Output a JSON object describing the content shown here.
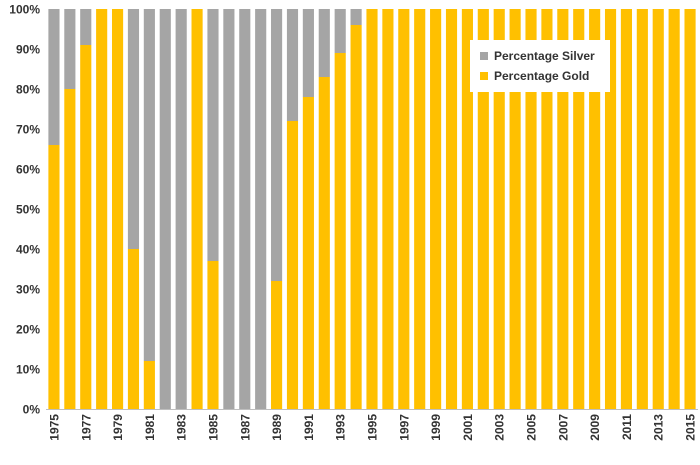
{
  "chart_data": {
    "type": "bar",
    "stacked": true,
    "categories": [
      "1975",
      "1976",
      "1977",
      "1978",
      "1979",
      "1980",
      "1981",
      "1982",
      "1983",
      "1984",
      "1985",
      "1986",
      "1987",
      "1988",
      "1989",
      "1990",
      "1991",
      "1992",
      "1993",
      "1994",
      "1995",
      "1996",
      "1997",
      "1998",
      "1999",
      "2000",
      "2001",
      "2002",
      "2003",
      "2004",
      "2005",
      "2006",
      "2007",
      "2008",
      "2009",
      "2010",
      "2011",
      "2012",
      "2013",
      "2014",
      "2015"
    ],
    "tick_labels": [
      "1975",
      "1977",
      "1979",
      "1981",
      "1983",
      "1985",
      "1987",
      "1989",
      "1991",
      "1993",
      "1995",
      "1997",
      "1999",
      "2001",
      "2003",
      "2005",
      "2007",
      "2009",
      "2011",
      "2013",
      "2015"
    ],
    "series": [
      {
        "name": "Percentage Gold",
        "color": "#FFC000",
        "values": [
          66,
          80,
          91,
          100,
          100,
          40,
          12,
          0,
          0,
          100,
          37,
          0,
          0,
          0,
          32,
          72,
          78,
          83,
          89,
          96,
          100,
          100,
          100,
          100,
          100,
          100,
          100,
          100,
          100,
          100,
          100,
          100,
          100,
          100,
          100,
          100,
          100,
          100,
          100,
          100,
          100
        ]
      },
      {
        "name": "Percentage Silver",
        "color": "#A5A5A5",
        "values": [
          34,
          20,
          9,
          0,
          0,
          60,
          88,
          100,
          100,
          0,
          63,
          100,
          100,
          100,
          68,
          28,
          22,
          17,
          11,
          4,
          0,
          0,
          0,
          0,
          0,
          0,
          0,
          0,
          0,
          0,
          0,
          0,
          0,
          0,
          0,
          0,
          0,
          0,
          0,
          0,
          0
        ]
      }
    ],
    "y_ticks": [
      "0%",
      "10%",
      "20%",
      "30%",
      "40%",
      "50%",
      "60%",
      "70%",
      "80%",
      "90%",
      "100%"
    ],
    "ylim": [
      0,
      100
    ],
    "title": "",
    "xlabel": "",
    "ylabel": "",
    "legend": [
      "Percentage Silver",
      "Percentage Gold"
    ],
    "legend_position": "top-right"
  },
  "colors": {
    "gold": "#FFC000",
    "silver": "#A5A5A5",
    "axis_text": "#333333"
  }
}
